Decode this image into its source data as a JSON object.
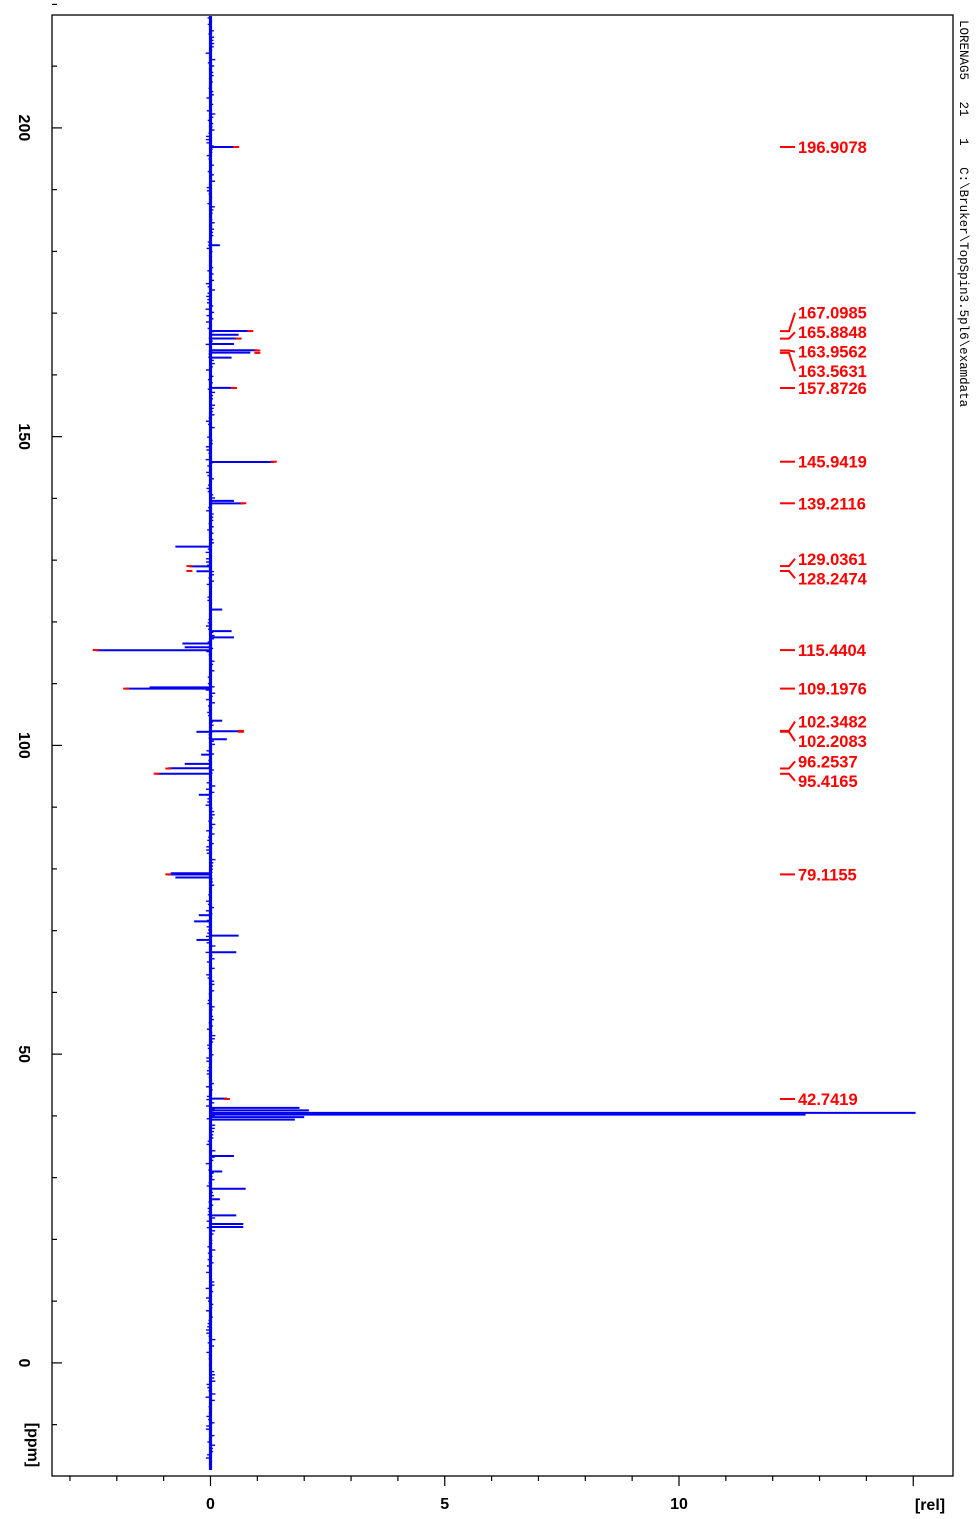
{
  "header": {
    "dataset": "LORENAG5",
    "expno": "21",
    "procno": "1",
    "path": "C:\\Bruker\\TopSpin3.5pl6\\examdata"
  },
  "chart_data": {
    "type": "line",
    "orientation": "rotated-90",
    "ppm_axis": {
      "unit": "[ppm]",
      "ticks": [
        200,
        150,
        100,
        50,
        0
      ],
      "range": [
        -12,
        223
      ]
    },
    "intensity_axis": {
      "unit": "[rel]",
      "ticks": [
        0,
        5,
        10
      ],
      "range": [
        -3,
        15.5
      ]
    },
    "colors": {
      "spectrum": "#0000ee",
      "peak_marker": "#ff0000"
    },
    "peaks": [
      {
        "label": "196.9078",
        "ppm": 196.9078
      },
      {
        "label": "167.0985",
        "ppm": 167.0985
      },
      {
        "label": "165.8848",
        "ppm": 165.8848
      },
      {
        "label": "163.9562",
        "ppm": 163.9562
      },
      {
        "label": "163.5631",
        "ppm": 163.5631
      },
      {
        "label": "157.8726",
        "ppm": 157.8726
      },
      {
        "label": "145.9419",
        "ppm": 145.9419
      },
      {
        "label": "139.2116",
        "ppm": 139.2116
      },
      {
        "label": "129.0361",
        "ppm": 129.0361
      },
      {
        "label": "128.2474",
        "ppm": 128.2474
      },
      {
        "label": "115.4404",
        "ppm": 115.4404
      },
      {
        "label": "109.1976",
        "ppm": 109.1976
      },
      {
        "label": "102.3482",
        "ppm": 102.3482
      },
      {
        "label": "102.2083",
        "ppm": 102.2083
      },
      {
        "label": "96.2537",
        "ppm": 96.2537
      },
      {
        "label": "95.4165",
        "ppm": 95.4165
      },
      {
        "label": "79.1155",
        "ppm": 79.1155
      },
      {
        "label": "42.7419",
        "ppm": 42.7419
      }
    ],
    "spectrum_sticks": [
      {
        "ppm": 196.9,
        "value": 0.55
      },
      {
        "ppm": 181.0,
        "value": 0.2
      },
      {
        "ppm": 167.1,
        "value": 0.85
      },
      {
        "ppm": 166.5,
        "value": 0.6
      },
      {
        "ppm": 165.9,
        "value": 0.55
      },
      {
        "ppm": 165.0,
        "value": 0.5
      },
      {
        "ppm": 164.0,
        "value": 1.0
      },
      {
        "ppm": 163.6,
        "value": 0.85
      },
      {
        "ppm": 162.8,
        "value": 0.45
      },
      {
        "ppm": 157.9,
        "value": 0.5
      },
      {
        "ppm": 145.9,
        "value": 1.35
      },
      {
        "ppm": 139.6,
        "value": 0.5
      },
      {
        "ppm": 139.2,
        "value": 0.7
      },
      {
        "ppm": 132.2,
        "value": -0.75
      },
      {
        "ppm": 129.0,
        "value": -0.45
      },
      {
        "ppm": 128.2,
        "value": -0.3
      },
      {
        "ppm": 122.0,
        "value": 0.25
      },
      {
        "ppm": 118.5,
        "value": 0.45
      },
      {
        "ppm": 117.5,
        "value": 0.5
      },
      {
        "ppm": 116.5,
        "value": -0.6
      },
      {
        "ppm": 115.9,
        "value": -0.55
      },
      {
        "ppm": 115.4,
        "value": -2.45
      },
      {
        "ppm": 109.4,
        "value": -1.3
      },
      {
        "ppm": 109.2,
        "value": -1.8
      },
      {
        "ppm": 104.0,
        "value": 0.25
      },
      {
        "ppm": 102.3,
        "value": 0.65
      },
      {
        "ppm": 102.2,
        "value": -0.3
      },
      {
        "ppm": 101.0,
        "value": 0.35
      },
      {
        "ppm": 98.5,
        "value": -0.2
      },
      {
        "ppm": 97.0,
        "value": -0.55
      },
      {
        "ppm": 96.3,
        "value": -0.9
      },
      {
        "ppm": 95.4,
        "value": -1.15
      },
      {
        "ppm": 92.0,
        "value": -0.25
      },
      {
        "ppm": 79.3,
        "value": -0.85
      },
      {
        "ppm": 79.1,
        "value": -0.9
      },
      {
        "ppm": 78.6,
        "value": -0.75
      },
      {
        "ppm": 72.5,
        "value": -0.25
      },
      {
        "ppm": 71.5,
        "value": -0.35
      },
      {
        "ppm": 69.2,
        "value": 0.6
      },
      {
        "ppm": 68.5,
        "value": -0.3
      },
      {
        "ppm": 66.5,
        "value": 0.55
      },
      {
        "ppm": 42.8,
        "value": 0.35
      },
      {
        "ppm": 41.3,
        "value": 1.9
      },
      {
        "ppm": 40.9,
        "value": 2.1
      },
      {
        "ppm": 40.5,
        "value": 15.05
      },
      {
        "ppm": 40.2,
        "value": 12.7
      },
      {
        "ppm": 39.8,
        "value": 2.0
      },
      {
        "ppm": 39.4,
        "value": 1.8
      },
      {
        "ppm": 33.5,
        "value": 0.5
      },
      {
        "ppm": 31.0,
        "value": 0.25
      },
      {
        "ppm": 28.2,
        "value": 0.75
      },
      {
        "ppm": 26.5,
        "value": 0.2
      },
      {
        "ppm": 23.9,
        "value": 0.55
      },
      {
        "ppm": 22.5,
        "value": 0.7
      },
      {
        "ppm": 22.0,
        "value": 0.7
      }
    ]
  }
}
